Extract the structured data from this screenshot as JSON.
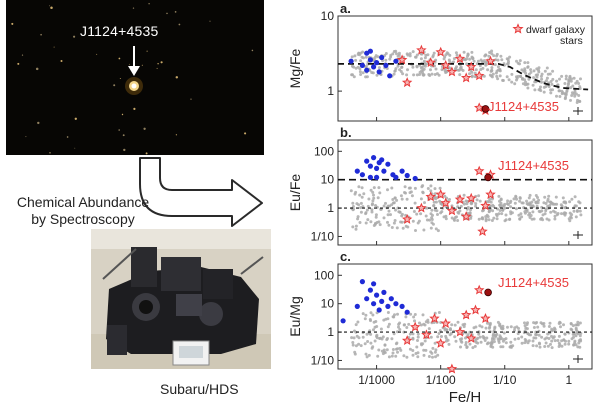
{
  "photo": {
    "star_label": "J1124+4535"
  },
  "process": {
    "line1": "Chemical Abundance",
    "line2": "by Spectroscopy"
  },
  "instrument": {
    "caption": "Subaru/HDS"
  },
  "colors": {
    "halo": "#aaaaaa",
    "ufd": "#1f2bd6",
    "dwarf": "#e83a3a",
    "target": "#9b1111"
  },
  "icons": [
    "down-arrow-icon",
    "curved-arrow-icon",
    "red-star-icon",
    "error-bar-icon"
  ],
  "chart_data": [
    {
      "panel": "a.",
      "type": "scatter",
      "ylabel": "Mg/Fe",
      "xscale": "log",
      "yscale": "log",
      "xlim": [
        0.00025,
        2.3
      ],
      "ylim": [
        0.4,
        10
      ],
      "yticks": [
        "10",
        "1"
      ],
      "legend": [
        "dwarf galaxy",
        "stars"
      ],
      "target_label": "J1124+4535",
      "trend": [
        [
          0.00025,
          2.3
        ],
        [
          0.08,
          2.3
        ],
        [
          0.12,
          2.1
        ],
        [
          0.2,
          1.65
        ],
        [
          0.4,
          1.28
        ],
        [
          0.8,
          1.1
        ],
        [
          2.0,
          1.05
        ]
      ],
      "ufd": [
        [
          0.0004,
          2.5
        ],
        [
          0.0006,
          2.2
        ],
        [
          0.0007,
          1.9
        ],
        [
          0.0008,
          2.6
        ],
        [
          0.0009,
          2.1
        ],
        [
          0.001,
          2.4
        ],
        [
          0.0011,
          1.8
        ],
        [
          0.0012,
          2.8
        ],
        [
          0.0014,
          2.2
        ],
        [
          0.0016,
          1.6
        ],
        [
          0.0008,
          3.4
        ],
        [
          0.0007,
          3.2
        ],
        [
          0.002,
          2.5
        ]
      ],
      "dwarf": [
        [
          0.0025,
          2.6
        ],
        [
          0.003,
          1.3
        ],
        [
          0.005,
          3.5
        ],
        [
          0.007,
          2.4
        ],
        [
          0.01,
          3.3
        ],
        [
          0.012,
          2.2
        ],
        [
          0.015,
          1.8
        ],
        [
          0.02,
          2.7
        ],
        [
          0.025,
          1.5
        ],
        [
          0.03,
          2.1
        ],
        [
          0.04,
          1.6
        ],
        [
          0.04,
          0.6
        ],
        [
          0.05,
          0.55
        ],
        [
          0.06,
          2.5
        ]
      ],
      "target": [
        [
          0.05,
          0.58
        ]
      ]
    },
    {
      "panel": "b.",
      "type": "scatter",
      "ylabel": "Eu/Fe",
      "xscale": "log",
      "yscale": "log",
      "xlim": [
        0.00025,
        2.3
      ],
      "ylim": [
        0.05,
        250
      ],
      "yticks": [
        "100",
        "10",
        "1",
        "1/10"
      ],
      "target_label": "J1124+4535",
      "hlines": [
        10,
        1
      ],
      "ufd": [
        [
          0.0005,
          20
        ],
        [
          0.0006,
          15
        ],
        [
          0.0007,
          45
        ],
        [
          0.0008,
          30
        ],
        [
          0.0009,
          60
        ],
        [
          0.001,
          25
        ],
        [
          0.001,
          12
        ],
        [
          0.0012,
          50
        ],
        [
          0.0013,
          20
        ],
        [
          0.0015,
          35
        ],
        [
          0.0018,
          15
        ],
        [
          0.002,
          12
        ],
        [
          0.0025,
          20
        ],
        [
          0.003,
          14
        ],
        [
          0.004,
          11
        ],
        [
          0.0008,
          12
        ],
        [
          0.0011,
          40
        ]
      ],
      "dwarf": [
        [
          0.003,
          0.4
        ],
        [
          0.005,
          1.0
        ],
        [
          0.007,
          2.5
        ],
        [
          0.01,
          3.0
        ],
        [
          0.012,
          1.5
        ],
        [
          0.015,
          0.8
        ],
        [
          0.02,
          2.0
        ],
        [
          0.025,
          0.5
        ],
        [
          0.03,
          2.2
        ],
        [
          0.04,
          20
        ],
        [
          0.045,
          0.15
        ],
        [
          0.05,
          1.2
        ],
        [
          0.06,
          3.0
        ],
        [
          0.06,
          15
        ]
      ],
      "target": [
        [
          0.055,
          12
        ]
      ]
    },
    {
      "panel": "c.",
      "type": "scatter",
      "ylabel": "Eu/Mg",
      "xlabel": "Fe/H",
      "xscale": "log",
      "yscale": "log",
      "xlim": [
        0.00025,
        2.3
      ],
      "ylim": [
        0.05,
        250
      ],
      "yticks": [
        "100",
        "10",
        "1",
        "1/10"
      ],
      "xticks": [
        "1/1000",
        "1/100",
        "1/10",
        "1"
      ],
      "target_label": "J1124+4535",
      "hlines": [
        1
      ],
      "ufd": [
        [
          0.0003,
          2.5
        ],
        [
          0.0005,
          8
        ],
        [
          0.0006,
          60
        ],
        [
          0.0007,
          15
        ],
        [
          0.0008,
          30
        ],
        [
          0.0009,
          10
        ],
        [
          0.001,
          20
        ],
        [
          0.0011,
          6
        ],
        [
          0.0012,
          12
        ],
        [
          0.0013,
          25
        ],
        [
          0.0015,
          8
        ],
        [
          0.0017,
          15
        ],
        [
          0.002,
          10
        ],
        [
          0.0025,
          8
        ],
        [
          0.003,
          5
        ],
        [
          0.0009,
          50
        ]
      ],
      "dwarf": [
        [
          0.003,
          0.5
        ],
        [
          0.004,
          1.5
        ],
        [
          0.006,
          0.8
        ],
        [
          0.008,
          3.0
        ],
        [
          0.01,
          0.4
        ],
        [
          0.012,
          2.0
        ],
        [
          0.015,
          0.05
        ],
        [
          0.02,
          1.0
        ],
        [
          0.025,
          4.0
        ],
        [
          0.03,
          0.6
        ],
        [
          0.035,
          6.0
        ],
        [
          0.04,
          30
        ],
        [
          0.05,
          3.0
        ]
      ],
      "target": [
        [
          0.055,
          25
        ]
      ]
    }
  ]
}
